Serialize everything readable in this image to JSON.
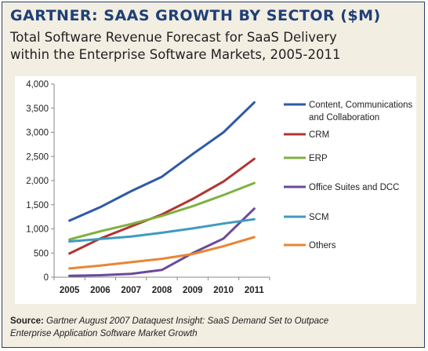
{
  "title": "GARTNER: SAAS GROWTH BY SECTOR ($M)",
  "subtitle_line1": "Total Software Revenue Forecast for SaaS Delivery",
  "subtitle_line2": "within the Enterprise Software Markets, 2005-2011",
  "source_label": "Source:",
  "source_text_line1": "Gartner August 2007 Dataquest Insight: SaaS Demand Set to Outpace",
  "source_text_line2": "Enterprise Application Software Market Growth",
  "chart_data": {
    "type": "line",
    "x": [
      2005,
      2006,
      2007,
      2008,
      2009,
      2010,
      2011
    ],
    "x_tick_labels": [
      "2005",
      "2006",
      "2007",
      "2008",
      "2009",
      "2010",
      "2011"
    ],
    "ylim": [
      0,
      4000
    ],
    "y_ticks": [
      0,
      500,
      1000,
      1500,
      2000,
      2500,
      3000,
      3500,
      4000
    ],
    "y_tick_labels": [
      "0",
      "500",
      "1,000",
      "1,500",
      "2,000",
      "2,500",
      "3,000",
      "3,500",
      "4,000"
    ],
    "grid": false,
    "legend_position": "right",
    "series": [
      {
        "name_lines": [
          "Content, Communications",
          "and Collaboration"
        ],
        "color": "#2e5aa8",
        "values": [
          1170,
          1450,
          1780,
          2080,
          2550,
          3000,
          3620
        ]
      },
      {
        "name_lines": [
          "CRM"
        ],
        "color": "#b03530",
        "values": [
          490,
          800,
          1050,
          1300,
          1620,
          1980,
          2450
        ]
      },
      {
        "name_lines": [
          "ERP"
        ],
        "color": "#7fb040",
        "values": [
          780,
          950,
          1100,
          1270,
          1470,
          1700,
          1950
        ]
      },
      {
        "name_lines": [
          "Office Suites and DCC"
        ],
        "color": "#6a4a9a",
        "values": [
          30,
          40,
          70,
          150,
          500,
          800,
          1420
        ]
      },
      {
        "name_lines": [
          "SCM"
        ],
        "color": "#3e9bbf",
        "values": [
          740,
          790,
          840,
          920,
          1010,
          1110,
          1200
        ]
      },
      {
        "name_lines": [
          "Others"
        ],
        "color": "#e98634",
        "values": [
          180,
          240,
          310,
          380,
          480,
          640,
          830
        ]
      }
    ]
  }
}
